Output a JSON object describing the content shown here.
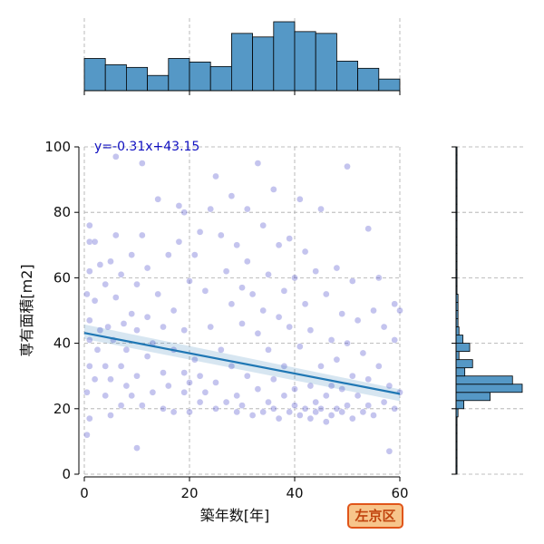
{
  "chart_data": {
    "type": "scatter",
    "subtype": "jointplot",
    "xlabel": "築年数[年]",
    "ylabel": "専有面積[m2]",
    "xlim": [
      0,
      60
    ],
    "ylim": [
      0,
      100
    ],
    "xticks": [
      "0",
      "20",
      "40",
      "60"
    ],
    "yticks": [
      "0",
      "20",
      "40",
      "60",
      "80",
      "100"
    ],
    "grid": true,
    "regression": {
      "equation": "y=-0.31x+43.15",
      "slope": -0.31,
      "intercept": 43.15,
      "color": "#1f77b4"
    },
    "point_color": "#3b3bc8",
    "hist_color": "#5598c6",
    "hist_top": {
      "bins": [
        0,
        4,
        8,
        12,
        16,
        20,
        24,
        28,
        32,
        36,
        40,
        44,
        48,
        52,
        56,
        60
      ],
      "counts": [
        36,
        29,
        26,
        17,
        36,
        32,
        27,
        64,
        60,
        77,
        66,
        64,
        33,
        25,
        13
      ]
    },
    "hist_right": {
      "bins": [
        0,
        2.5,
        5,
        7.5,
        10,
        12.5,
        15,
        17.5,
        20,
        22.5,
        25,
        27.5,
        30,
        32.5,
        35,
        37.5,
        40,
        42.5,
        45,
        47.5,
        50,
        52.5,
        55,
        57.5,
        60,
        62.5,
        65,
        67.5,
        70,
        72.5,
        75,
        77.5,
        80,
        82.5,
        85,
        87.5,
        90,
        92.5,
        95,
        97.5,
        100
      ],
      "counts": [
        1,
        1,
        1,
        1,
        1,
        1,
        1,
        2,
        8,
        35,
        68,
        58,
        9,
        17,
        3,
        14,
        7,
        3,
        2,
        2,
        2,
        2,
        1,
        1,
        1,
        1,
        1,
        1,
        1,
        1,
        1,
        1,
        1,
        1,
        1,
        1,
        1,
        1,
        1,
        1
      ]
    },
    "points": [
      [
        0.5,
        12
      ],
      [
        1,
        17
      ],
      [
        0.5,
        25
      ],
      [
        1,
        33
      ],
      [
        1,
        41
      ],
      [
        1,
        47
      ],
      [
        0.5,
        55
      ],
      [
        1,
        62
      ],
      [
        1,
        71
      ],
      [
        1,
        76
      ],
      [
        2,
        29
      ],
      [
        2.5,
        38
      ],
      [
        3,
        44
      ],
      [
        2,
        53
      ],
      [
        3,
        64
      ],
      [
        2,
        71
      ],
      [
        4,
        24
      ],
      [
        4,
        33
      ],
      [
        4.5,
        45
      ],
      [
        4,
        58
      ],
      [
        5,
        18
      ],
      [
        5,
        29
      ],
      [
        5.5,
        41
      ],
      [
        6,
        54
      ],
      [
        5,
        65
      ],
      [
        6,
        97
      ],
      [
        6,
        73
      ],
      [
        7,
        21
      ],
      [
        7,
        33
      ],
      [
        7.5,
        46
      ],
      [
        7,
        61
      ],
      [
        8,
        27
      ],
      [
        8,
        38
      ],
      [
        9,
        24
      ],
      [
        9,
        49
      ],
      [
        9,
        67
      ],
      [
        10,
        8
      ],
      [
        10,
        30
      ],
      [
        10,
        44
      ],
      [
        11,
        95
      ],
      [
        10,
        58
      ],
      [
        11,
        73
      ],
      [
        11,
        21
      ],
      [
        12,
        36
      ],
      [
        12,
        48
      ],
      [
        12,
        63
      ],
      [
        13,
        25
      ],
      [
        13,
        40
      ],
      [
        14,
        84
      ],
      [
        14,
        55
      ],
      [
        15,
        20
      ],
      [
        15,
        31
      ],
      [
        15,
        45
      ],
      [
        16,
        67
      ],
      [
        16,
        27
      ],
      [
        17,
        19
      ],
      [
        17,
        38
      ],
      [
        17,
        50
      ],
      [
        18,
        82
      ],
      [
        18,
        71
      ],
      [
        19,
        25
      ],
      [
        19,
        31
      ],
      [
        19,
        80
      ],
      [
        19,
        44
      ],
      [
        20,
        59
      ],
      [
        20,
        19
      ],
      [
        20,
        28
      ],
      [
        21,
        67
      ],
      [
        21,
        35
      ],
      [
        22,
        74
      ],
      [
        22,
        22
      ],
      [
        22,
        30
      ],
      [
        23,
        56
      ],
      [
        23,
        25
      ],
      [
        24,
        81
      ],
      [
        24,
        45
      ],
      [
        25,
        91
      ],
      [
        25,
        20
      ],
      [
        25,
        28
      ],
      [
        26,
        73
      ],
      [
        26,
        38
      ],
      [
        27,
        62
      ],
      [
        27,
        22
      ],
      [
        28,
        85
      ],
      [
        28,
        52
      ],
      [
        28,
        33
      ],
      [
        29,
        24
      ],
      [
        29,
        70
      ],
      [
        29,
        19
      ],
      [
        30,
        46
      ],
      [
        30,
        57
      ],
      [
        30,
        21
      ],
      [
        31,
        81
      ],
      [
        31,
        30
      ],
      [
        31,
        65
      ],
      [
        32,
        55
      ],
      [
        32,
        18
      ],
      [
        33,
        95
      ],
      [
        33,
        26
      ],
      [
        33,
        43
      ],
      [
        34,
        50
      ],
      [
        34,
        76
      ],
      [
        34,
        19
      ],
      [
        35,
        22
      ],
      [
        35,
        38
      ],
      [
        35,
        61
      ],
      [
        36,
        87
      ],
      [
        36,
        20
      ],
      [
        36,
        29
      ],
      [
        37,
        48
      ],
      [
        37,
        70
      ],
      [
        37,
        17
      ],
      [
        38,
        24
      ],
      [
        38,
        56
      ],
      [
        38,
        33
      ],
      [
        39,
        72
      ],
      [
        39,
        19
      ],
      [
        39,
        45
      ],
      [
        40,
        21
      ],
      [
        40,
        60
      ],
      [
        40,
        26
      ],
      [
        41,
        84
      ],
      [
        41,
        18
      ],
      [
        41,
        39
      ],
      [
        42,
        20
      ],
      [
        42,
        52
      ],
      [
        42,
        68
      ],
      [
        43,
        17
      ],
      [
        43,
        27
      ],
      [
        43,
        44
      ],
      [
        44,
        22
      ],
      [
        44,
        62
      ],
      [
        44,
        19
      ],
      [
        45,
        81
      ],
      [
        45,
        33
      ],
      [
        45,
        20
      ],
      [
        46,
        55
      ],
      [
        46,
        24
      ],
      [
        46,
        16
      ],
      [
        47,
        41
      ],
      [
        47,
        18
      ],
      [
        47,
        27
      ],
      [
        48,
        63
      ],
      [
        48,
        20
      ],
      [
        48,
        35
      ],
      [
        49,
        19
      ],
      [
        49,
        49
      ],
      [
        49,
        26
      ],
      [
        50,
        94
      ],
      [
        50,
        21
      ],
      [
        50,
        40
      ],
      [
        51,
        17
      ],
      [
        51,
        30
      ],
      [
        51,
        59
      ],
      [
        52,
        24
      ],
      [
        52,
        47
      ],
      [
        53,
        19
      ],
      [
        53,
        37
      ],
      [
        54,
        75
      ],
      [
        54,
        21
      ],
      [
        54,
        29
      ],
      [
        55,
        50
      ],
      [
        55,
        18
      ],
      [
        56,
        33
      ],
      [
        56,
        60
      ],
      [
        57,
        22
      ],
      [
        57,
        45
      ],
      [
        58,
        7
      ],
      [
        58,
        27
      ],
      [
        59,
        52
      ],
      [
        59,
        20
      ],
      [
        59,
        41
      ],
      [
        60,
        50
      ],
      [
        60,
        25
      ]
    ]
  },
  "badge": {
    "label": "左京区"
  }
}
